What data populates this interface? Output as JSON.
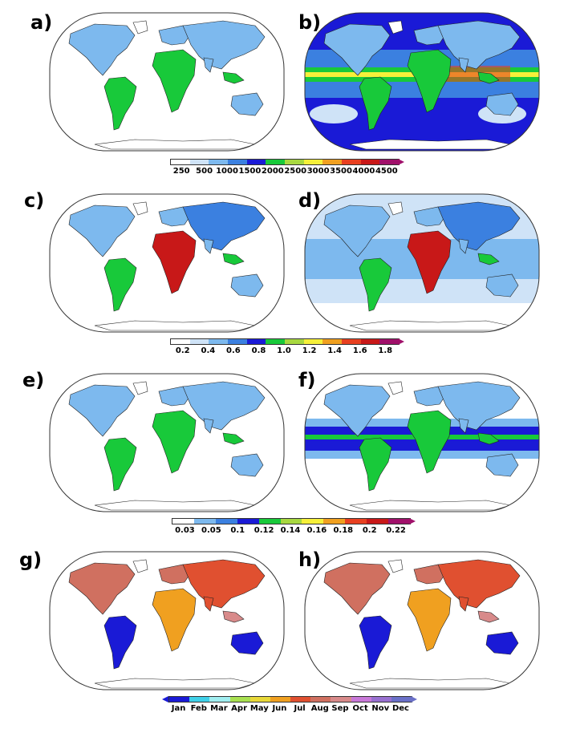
{
  "panels": [
    {
      "id": "a",
      "label": "a)",
      "type": "land"
    },
    {
      "id": "b",
      "label": "b)",
      "type": "ocean"
    },
    {
      "id": "c",
      "label": "c)",
      "type": "land"
    },
    {
      "id": "d",
      "label": "d)",
      "type": "ocean"
    },
    {
      "id": "e",
      "label": "e)",
      "type": "land"
    },
    {
      "id": "f",
      "label": "f)",
      "type": "ocean"
    },
    {
      "id": "g",
      "label": "g)",
      "type": "month"
    },
    {
      "id": "h",
      "label": "h)",
      "type": "month"
    }
  ],
  "colorbars": [
    {
      "id": "precip",
      "colors": [
        "#ffffff",
        "#cfe3f7",
        "#7db9ee",
        "#3b80e0",
        "#1a1ad6",
        "#18c93a",
        "#a8d840",
        "#f6f03a",
        "#f0a020",
        "#e84020",
        "#c81818",
        "#a0106a"
      ],
      "ticks": [
        "250",
        "500",
        "1000",
        "1500",
        "2000",
        "2500",
        "3000",
        "3500",
        "4000",
        "4500"
      ]
    },
    {
      "id": "ratio",
      "colors": [
        "#ffffff",
        "#cfe3f7",
        "#7db9ee",
        "#3b80e0",
        "#1a1ad6",
        "#18c93a",
        "#a8d840",
        "#f6f03a",
        "#f0a020",
        "#e84020",
        "#c81818",
        "#a0106a"
      ],
      "ticks": [
        "0.2",
        "0.4",
        "0.6",
        "0.8",
        "1.0",
        "1.2",
        "1.4",
        "1.6",
        "1.8"
      ]
    },
    {
      "id": "small",
      "colors": [
        "#ffffff",
        "#7db9ee",
        "#3b80e0",
        "#1a1ad6",
        "#18c93a",
        "#a8d840",
        "#f6f03a",
        "#f0a020",
        "#e84020",
        "#c81818",
        "#a0106a"
      ],
      "ticks": [
        "0.03",
        "0.05",
        "0.1",
        "0.12",
        "0.14",
        "0.16",
        "0.18",
        "0.2",
        "0.22"
      ]
    },
    {
      "id": "month",
      "colors": [
        "#1a1ad6",
        "#3fd0e8",
        "#a0eef0",
        "#a8e050",
        "#e8d838",
        "#f0a020",
        "#e05030",
        "#d07060",
        "#d88a8a",
        "#c878d8",
        "#9870d0",
        "#6a70c8"
      ],
      "ticks": [
        "Jan",
        "Feb",
        "Mar",
        "Apr",
        "May",
        "Jun",
        "Jul",
        "Aug",
        "Sep",
        "Oct",
        "Nov",
        "Dec"
      ]
    }
  ]
}
